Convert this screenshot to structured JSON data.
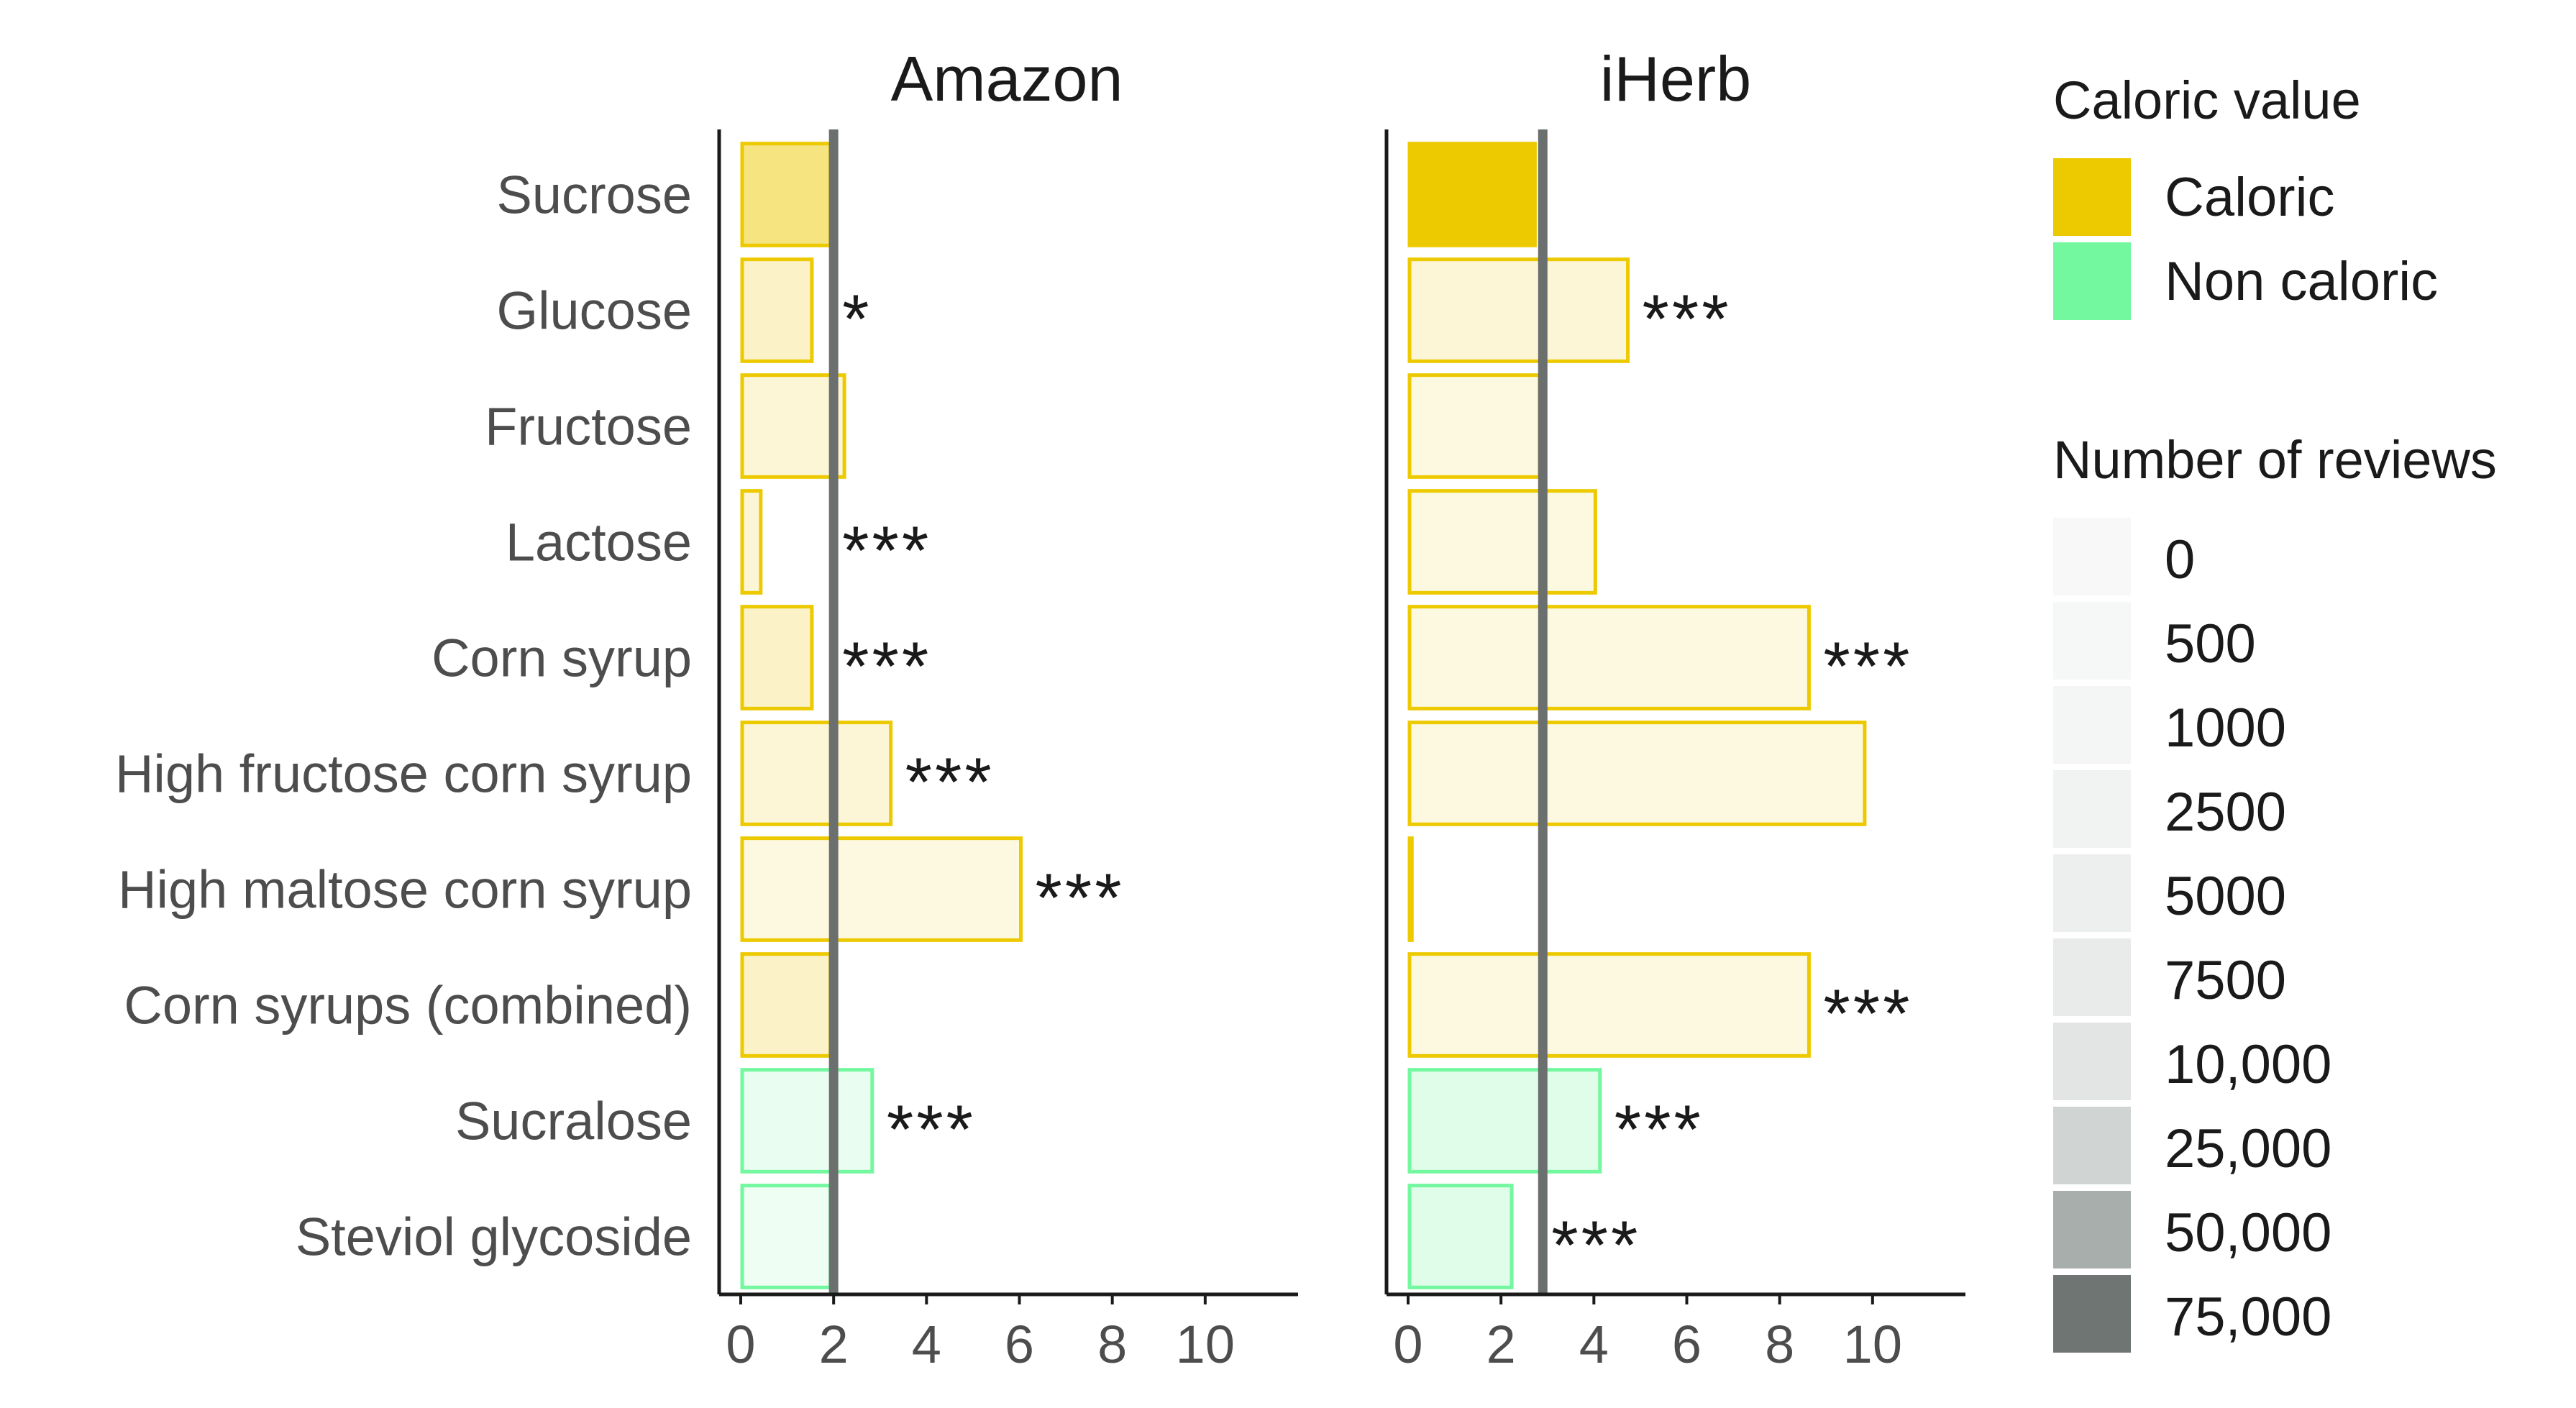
{
  "chart_data": {
    "type": "bar",
    "orientation": "horizontal",
    "categories": [
      "Sucrose",
      "Glucose",
      "Fructose",
      "Lactose",
      "Corn syrup",
      "High fructose corn syrup",
      "High maltose corn syrup",
      "Corn syrups (combined)",
      "Sucralose",
      "Steviol glycoside"
    ],
    "caloric_value": [
      "Caloric",
      "Caloric",
      "Caloric",
      "Caloric",
      "Caloric",
      "Caloric",
      "Caloric",
      "Caloric",
      "Non caloric",
      "Non caloric"
    ],
    "xlim": [
      0,
      12
    ],
    "xticks": [
      0,
      2,
      4,
      6,
      8,
      10
    ],
    "panels": [
      {
        "title": "Amazon",
        "reference_line": 2.0,
        "values": [
          1.9,
          1.5,
          2.2,
          0.4,
          1.5,
          3.2,
          6.0,
          1.9,
          2.8,
          1.9
        ],
        "review_level": [
          6,
          3,
          2,
          2,
          3,
          2,
          1,
          3,
          2,
          1
        ],
        "significance": [
          "",
          "*",
          "",
          "***",
          "***",
          "***",
          "***",
          "",
          "***",
          ""
        ]
      },
      {
        "title": "iHerb",
        "reference_line": 2.9,
        "values": [
          2.7,
          4.7,
          2.8,
          4.0,
          8.6,
          9.8,
          0.05,
          8.6,
          4.1,
          2.2
        ],
        "review_level": [
          7,
          2,
          1,
          1,
          1,
          1,
          0,
          1,
          3,
          3
        ],
        "significance": [
          "",
          "***",
          "",
          "",
          "***",
          "",
          "",
          "***",
          "***",
          "***"
        ]
      }
    ],
    "colors": {
      "caloric": "#edc900",
      "non_caloric": "#73f79f",
      "reference_line": "#6b6f6e",
      "axis": "#1a1a1a",
      "text": "#4d4d4d",
      "title": "#1a1a1a"
    },
    "review_alpha_levels": [
      0.07,
      0.12,
      0.16,
      0.22,
      0.3,
      0.38,
      0.5,
      0.85
    ],
    "legend": {
      "placement": "right",
      "caloric_title": "Caloric value",
      "caloric_items": [
        {
          "label": "Caloric",
          "color": "#edc900"
        },
        {
          "label": "Non caloric",
          "color": "#73f79f"
        }
      ],
      "reviews_title": "Number of reviews",
      "reviews_items": [
        {
          "label": "0",
          "color": "#f8f8f8"
        },
        {
          "label": "500",
          "color": "#f6f7f7"
        },
        {
          "label": "1000",
          "color": "#f4f5f5"
        },
        {
          "label": "2500",
          "color": "#f1f2f2"
        },
        {
          "label": "5000",
          "color": "#edefee"
        },
        {
          "label": "7500",
          "color": "#e9ebea"
        },
        {
          "label": "10,000",
          "color": "#e3e5e5"
        },
        {
          "label": "25,000",
          "color": "#d0d4d3"
        },
        {
          "label": "50,000",
          "color": "#a8aeac"
        },
        {
          "label": "75,000",
          "color": "#6e7573"
        }
      ]
    }
  }
}
